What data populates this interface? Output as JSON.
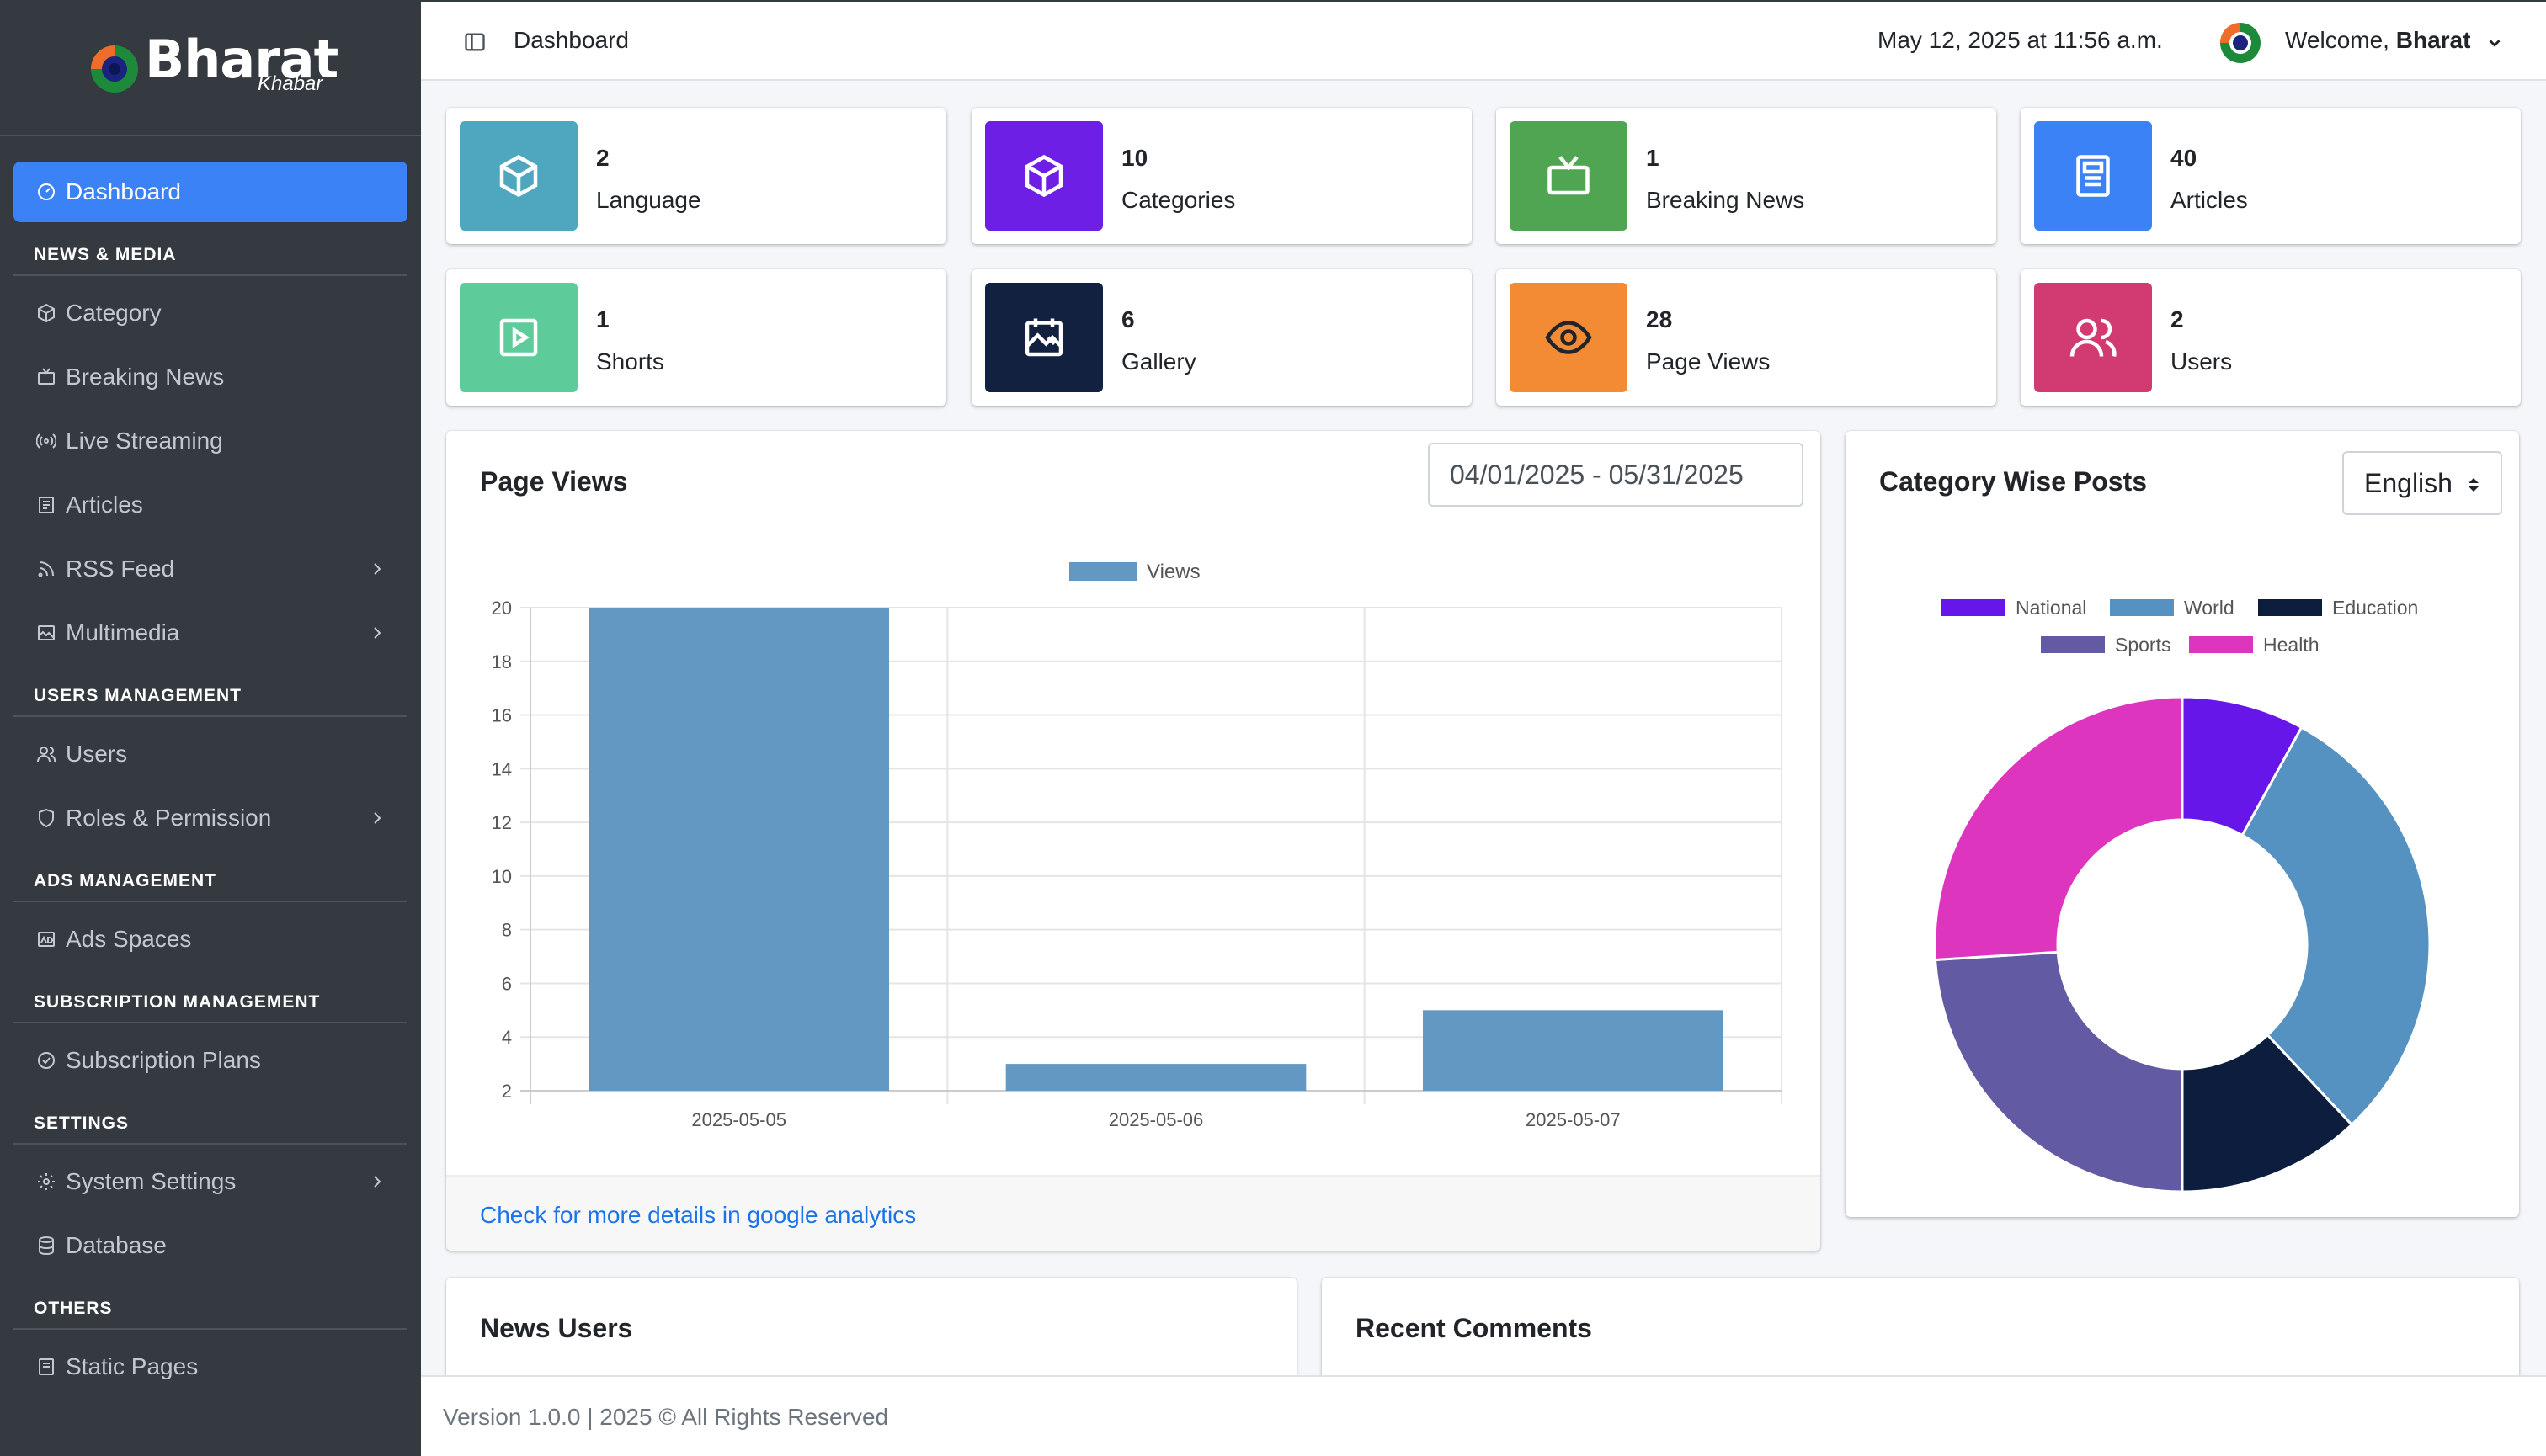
{
  "brand": {
    "name": "Bharat",
    "subtitle": "Khabar"
  },
  "topbar": {
    "title": "Dashboard",
    "datetime": "May 12, 2025 at 11:56 a.m.",
    "welcome_prefix": "Welcome,",
    "username": "Bharat"
  },
  "sidebar": {
    "dashboard": "Dashboard",
    "sections": {
      "news_media": "NEWS & MEDIA",
      "users_management": "USERS MANAGEMENT",
      "ads_management": "ADS MANAGEMENT",
      "subscription_management": "SUBSCRIPTION MANAGEMENT",
      "settings": "SETTINGS",
      "others": "OTHERS"
    },
    "items": {
      "category": "Category",
      "breaking_news": "Breaking News",
      "live_streaming": "Live Streaming",
      "articles": "Articles",
      "rss_feed": "RSS Feed",
      "multimedia": "Multimedia",
      "users": "Users",
      "roles_permission": "Roles & Permission",
      "ads_spaces": "Ads Spaces",
      "subscription_plans": "Subscription Plans",
      "system_settings": "System Settings",
      "database": "Database",
      "static_pages": "Static Pages"
    }
  },
  "stats": [
    {
      "value": "2",
      "label": "Language",
      "color": "#4ea6bf",
      "icon": "cube-icon"
    },
    {
      "value": "10",
      "label": "Categories",
      "color": "#6d1fe6",
      "icon": "cube-icon"
    },
    {
      "value": "1",
      "label": "Breaking News",
      "color": "#4fa551",
      "icon": "tv-icon"
    },
    {
      "value": "40",
      "label": "Articles",
      "color": "#3b82f6",
      "icon": "article-icon"
    },
    {
      "value": "1",
      "label": "Shorts",
      "color": "#5ecb9b",
      "icon": "play-icon"
    },
    {
      "value": "6",
      "label": "Gallery",
      "color": "#12213f",
      "icon": "gallery-icon"
    },
    {
      "value": "28",
      "label": "Page Views",
      "color": "#f28b34",
      "icon": "eye-icon"
    },
    {
      "value": "2",
      "label": "Users",
      "color": "#d23b72",
      "icon": "users-icon"
    }
  ],
  "page_views_card": {
    "title": "Page Views",
    "date_range": "04/01/2025 - 05/31/2025",
    "footer_link": "Check for more details in google analytics"
  },
  "category_card": {
    "title": "Category Wise Posts",
    "language": "English"
  },
  "news_users_card": {
    "title": "News Users"
  },
  "recent_comments_card": {
    "title": "Recent Comments"
  },
  "footer": {
    "text": "Version 1.0.0 | 2025 © All Rights Reserved"
  },
  "chart_data": [
    {
      "type": "bar",
      "categories": [
        "2025-05-05",
        "2025-05-06",
        "2025-05-07"
      ],
      "series": [
        {
          "name": "Views",
          "values": [
            20,
            3,
            5
          ],
          "color": "#6398c2"
        }
      ],
      "ylim": [
        2,
        20
      ],
      "yticks": [
        2,
        4,
        6,
        8,
        10,
        12,
        14,
        16,
        18,
        20
      ],
      "legend": "top",
      "grid": true
    },
    {
      "type": "pie",
      "donut": true,
      "legend": "top",
      "slices": [
        {
          "name": "National",
          "value": 8,
          "color": "#6716ea"
        },
        {
          "name": "World",
          "value": 30,
          "color": "#5591c1"
        },
        {
          "name": "Education",
          "value": 12,
          "color": "#0c1d3e"
        },
        {
          "name": "Sports",
          "value": 24,
          "color": "#625aa3"
        },
        {
          "name": "Health",
          "value": 26,
          "color": "#dd35bd"
        }
      ]
    }
  ]
}
